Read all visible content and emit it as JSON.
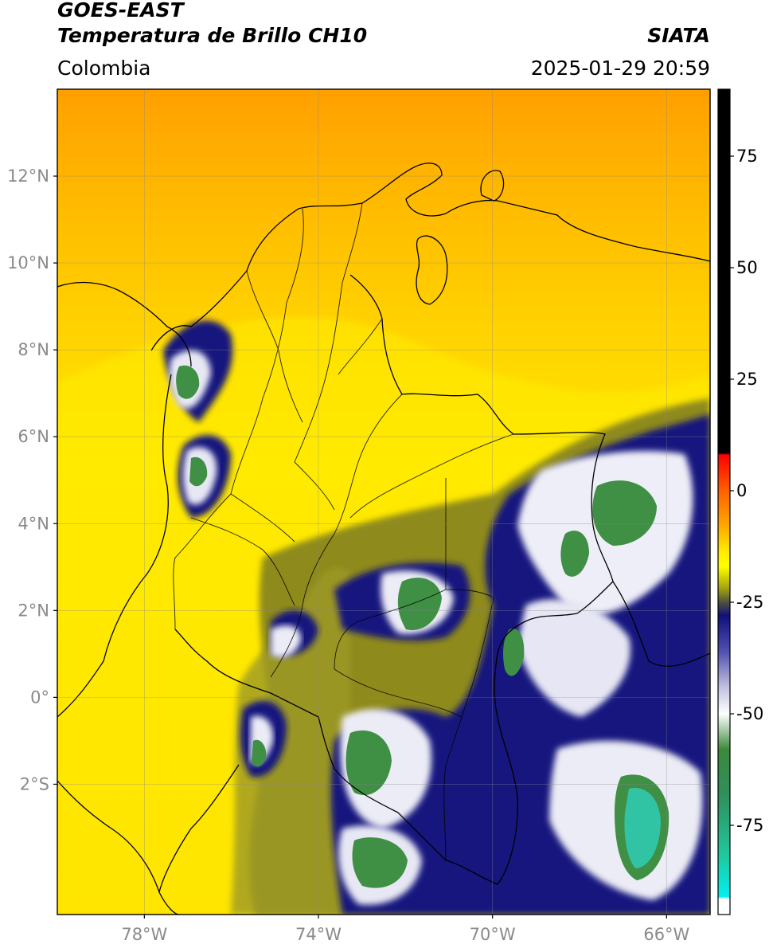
{
  "header": {
    "satellite": "GOES-EAST",
    "product": "Temperatura de Brillo CH10",
    "agency": "SIATA",
    "region": "Colombia",
    "datetime": "2025-01-29 20:59"
  },
  "axes": {
    "lat_ticks": [
      {
        "value": 12,
        "label": "12°N"
      },
      {
        "value": 10,
        "label": "10°N"
      },
      {
        "value": 8,
        "label": "8°N"
      },
      {
        "value": 6,
        "label": "6°N"
      },
      {
        "value": 4,
        "label": "4°N"
      },
      {
        "value": 2,
        "label": "2°N"
      },
      {
        "value": 0,
        "label": "0°"
      },
      {
        "value": -2,
        "label": "2°S"
      }
    ],
    "lon_ticks": [
      {
        "value": -78,
        "label": "78°W"
      },
      {
        "value": -74,
        "label": "74°W"
      },
      {
        "value": -70,
        "label": "70°W"
      },
      {
        "value": -66,
        "label": "66°W"
      }
    ],
    "lon_range": [
      -80,
      -65
    ],
    "lat_range": [
      -5,
      14
    ],
    "grid": true
  },
  "colorbar": {
    "range": [
      -95,
      90
    ],
    "ticks": [
      {
        "value": 75,
        "label": "75"
      },
      {
        "value": 50,
        "label": "50"
      },
      {
        "value": 25,
        "label": "25"
      },
      {
        "value": 0,
        "label": "0"
      },
      {
        "value": -25,
        "label": "-25"
      },
      {
        "value": -50,
        "label": "-50"
      },
      {
        "value": -75,
        "label": "-75"
      }
    ],
    "stops": [
      {
        "value": 90,
        "color": "#000000"
      },
      {
        "value": 8.5,
        "color": "#000000"
      },
      {
        "value": 8,
        "color": "#ff0000"
      },
      {
        "value": 0,
        "color": "#ff6000"
      },
      {
        "value": -8,
        "color": "#ffaa00"
      },
      {
        "value": -14,
        "color": "#ffee00"
      },
      {
        "value": -17,
        "color": "#ffff00"
      },
      {
        "value": -22,
        "color": "#a0a010"
      },
      {
        "value": -25,
        "color": "#505040"
      },
      {
        "value": -28,
        "color": "#10107a"
      },
      {
        "value": -36,
        "color": "#5050b0"
      },
      {
        "value": -44,
        "color": "#c0c0e0"
      },
      {
        "value": -50,
        "color": "#ffffff"
      },
      {
        "value": -58,
        "color": "#3b8a3b"
      },
      {
        "value": -68,
        "color": "#2f8f5a"
      },
      {
        "value": -82,
        "color": "#20c8a0"
      },
      {
        "value": -91,
        "color": "#00f0f0"
      },
      {
        "value": -91.5,
        "color": "#ffffff"
      },
      {
        "value": -95,
        "color": "#ffffff"
      }
    ]
  },
  "map_colors": {
    "warm_top": "#ffa400",
    "mid": "#ffcf00",
    "yellow": "#ffeb00",
    "olive": "#8e8a1e",
    "navy": "#14147e",
    "white": "#f4f4fa",
    "green": "#3f8f45",
    "teal": "#30c4a4",
    "border": "#000000"
  }
}
